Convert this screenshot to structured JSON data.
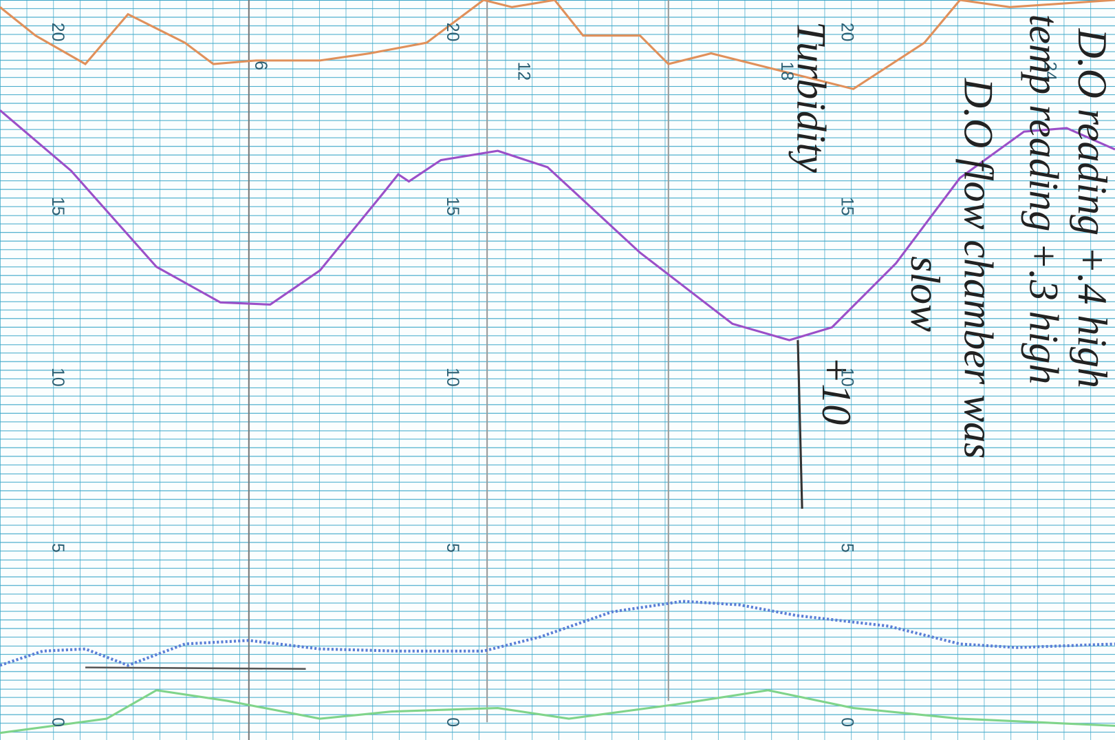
{
  "scale_columns": [
    {
      "labels": [
        "20",
        "15",
        "10",
        "5",
        "0"
      ]
    },
    {
      "labels": [
        "20",
        "15",
        "10",
        "5",
        "0"
      ]
    },
    {
      "labels": [
        "20",
        "15",
        "10",
        "5",
        "0"
      ]
    }
  ],
  "hour_labels": [
    "6",
    "12",
    "18",
    "24"
  ],
  "notes": [
    "D.O reading +.4 high",
    "temp reading +.3 high",
    "D.O flow chamber was",
    "slow",
    "Turbidity",
    "+10"
  ]
}
